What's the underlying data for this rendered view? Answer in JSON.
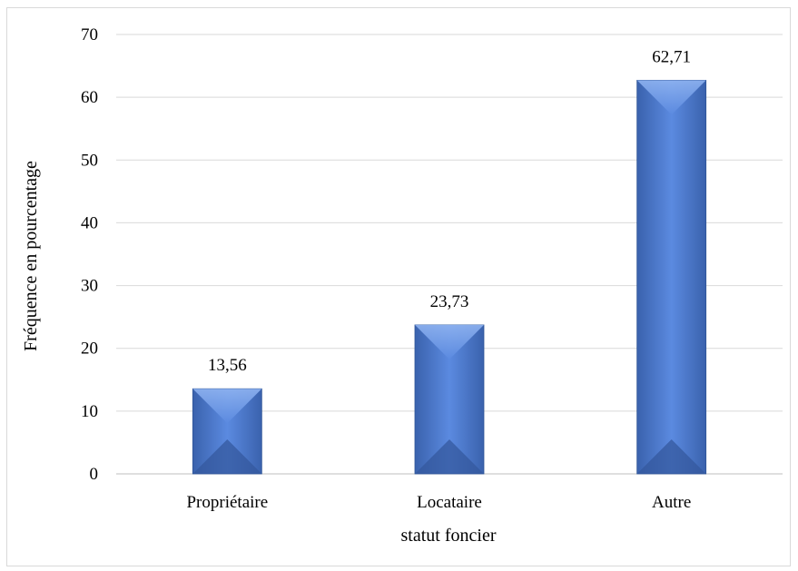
{
  "chart_data": {
    "type": "bar",
    "categories": [
      "Propriétaire",
      "Locataire",
      "Autre"
    ],
    "values": [
      13.56,
      23.73,
      62.71
    ],
    "value_labels": [
      "13,56",
      "23,73",
      "62,71"
    ],
    "xlabel": "statut foncier",
    "ylabel": "Fréquence en pourcentage",
    "ylim": [
      0,
      70
    ],
    "yticks": [
      0,
      10,
      20,
      30,
      40,
      50,
      60,
      70
    ],
    "grid": true,
    "legend": "none",
    "bar_color": "#4472c4"
  }
}
